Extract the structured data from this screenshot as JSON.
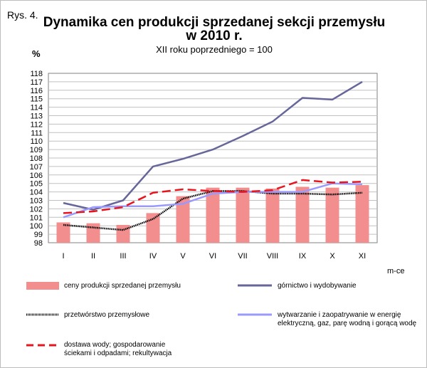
{
  "figure_label": "Rys. 4.",
  "chart_data": {
    "type": "bar",
    "title_line1": "Dynamika cen produkcji sprzedanej sekcji przemysłu",
    "title_line2": "w 2010 r.",
    "subtitle": "XII roku poprzedniego = 100",
    "ylabel": "%",
    "xlabel": "m-ce",
    "categories": [
      "I",
      "II",
      "III",
      "IV",
      "V",
      "VI",
      "VII",
      "VIII",
      "IX",
      "X",
      "XI"
    ],
    "ylim": [
      98,
      118
    ],
    "yticks": [
      98,
      99,
      100,
      101,
      102,
      103,
      104,
      105,
      106,
      107,
      108,
      109,
      110,
      111,
      112,
      113,
      114,
      115,
      116,
      117,
      118
    ],
    "grid": true,
    "legend_position": "bottom",
    "series": [
      {
        "name": "ceny produkcji sprzedanej przemysłu",
        "kind": "bar",
        "color": "#f28e8e",
        "values": [
          100.4,
          100.3,
          100.1,
          101.5,
          103.5,
          104.5,
          104.5,
          104.4,
          104.6,
          104.5,
          104.8
        ]
      },
      {
        "name": "górnictwo i wydobywanie",
        "kind": "line",
        "color": "#66669a",
        "values": [
          102.7,
          101.9,
          103.0,
          107.0,
          107.9,
          109.0,
          110.6,
          112.3,
          115.1,
          114.9,
          117.0
        ]
      },
      {
        "name": "przetwórstwo przemysłowe",
        "kind": "line",
        "color": "#000000",
        "values": [
          100.1,
          99.8,
          99.5,
          100.8,
          103.2,
          104.1,
          104.1,
          103.8,
          103.8,
          103.7,
          103.9
        ]
      },
      {
        "name": "wytwarzanie  i zaopatrywanie  w energię elektryczną,  gaz, parę wodną i gorącą wodę",
        "kind": "line",
        "color": "#9999ff",
        "values": [
          101.0,
          102.2,
          102.3,
          102.3,
          102.6,
          103.8,
          104.0,
          104.0,
          104.0,
          105.0,
          104.9
        ]
      },
      {
        "name": "dostawa wody; gospodarowanie ściekami i odpadami; rekultywacja",
        "kind": "line",
        "color": "#e8141e",
        "values": [
          101.5,
          101.7,
          102.2,
          103.9,
          104.3,
          104.1,
          104.0,
          104.2,
          105.4,
          105.1,
          105.2
        ]
      }
    ]
  },
  "legend": {
    "item1": "ceny produkcji sprzedanej przemysłu",
    "item2": "górnictwo i wydobywanie",
    "item3": "przetwórstwo przemysłowe",
    "item4_line1": "wytwarzanie  i zaopatrywanie  w energię",
    "item4_line2": "elektryczną,  gaz, parę wodną i gorącą wodę",
    "item5_line1": "dostawa wody; gospodarowanie",
    "item5_line2": "ściekami i odpadami; rekultywacja"
  }
}
